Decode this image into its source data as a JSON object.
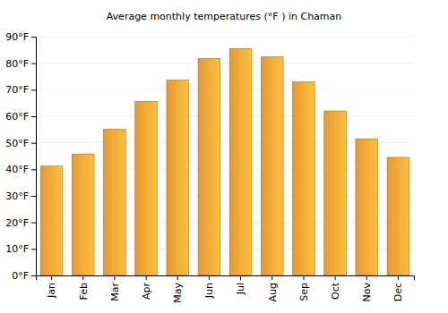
{
  "chart_data": {
    "type": "bar",
    "title": "Average monthly temperatures (°F ) in Chaman",
    "categories": [
      "Jan",
      "Feb",
      "Mar",
      "Apr",
      "May",
      "Jun",
      "Jul",
      "Aug",
      "Sep",
      "Oct",
      "Nov",
      "Dec"
    ],
    "values": [
      41.2,
      45.8,
      55.2,
      65.6,
      73.6,
      81.8,
      85.5,
      82.4,
      73.0,
      62.0,
      51.5,
      44.5
    ],
    "color": "#fba837",
    "ylim": [
      0,
      90
    ],
    "yticks": [
      {
        "value": 0,
        "label": "0°F"
      },
      {
        "value": 10,
        "label": "10°F"
      },
      {
        "value": 20,
        "label": "20°F"
      },
      {
        "value": 30,
        "label": "30°F"
      },
      {
        "value": 40,
        "label": "40°F"
      },
      {
        "value": 50,
        "label": "50°F"
      },
      {
        "value": 60,
        "label": "60°F"
      },
      {
        "value": 70,
        "label": "70°F"
      },
      {
        "value": 80,
        "label": "80°F"
      },
      {
        "value": 90,
        "label": "90°F"
      }
    ],
    "grid": true
  }
}
